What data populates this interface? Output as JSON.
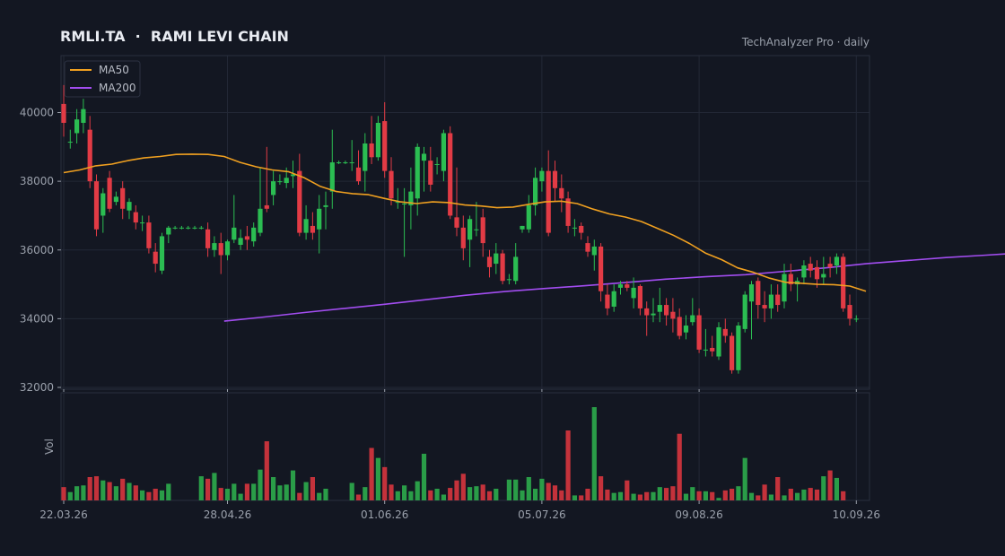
{
  "header": {
    "title": "RMLI.TA  ·  RAMI LEVI CHAIN",
    "subtitle": "TechAnalyzer Pro · daily"
  },
  "colors": {
    "up": "#2bbd52",
    "down": "#e23b45",
    "ma50": "#f0a020",
    "ma200": "#a24df0",
    "grid": "#232836",
    "background": "#131722"
  },
  "chart_data": {
    "type": "candlestick",
    "title": "RMLI.TA  ·  RAMI LEVI CHAIN",
    "ylim": [
      32000,
      41500
    ],
    "yticks": [
      32000,
      34000,
      36000,
      38000,
      40000
    ],
    "xticks": [
      {
        "index": 0,
        "label": "22.03.26"
      },
      {
        "index": 25,
        "label": "28.04.26"
      },
      {
        "index": 49,
        "label": "01.06.26"
      },
      {
        "index": 73,
        "label": "05.07.26"
      },
      {
        "index": 97,
        "label": "09.08.26"
      },
      {
        "index": 121,
        "label": "10.09.26"
      }
    ],
    "volume_label": "Vol",
    "legend": [
      {
        "name": "MA50",
        "color": "#f0a020"
      },
      {
        "name": "MA200",
        "color": "#a24df0"
      }
    ],
    "ohlc": [
      [
        40250,
        39700,
        40800,
        39300
      ],
      [
        39150,
        39150,
        39500,
        38950
      ],
      [
        39400,
        39800,
        40100,
        39100
      ],
      [
        39700,
        40100,
        40400,
        39400
      ],
      [
        39500,
        38000,
        39900,
        37800
      ],
      [
        38000,
        36600,
        38200,
        36400
      ],
      [
        37000,
        37650,
        37800,
        36500
      ],
      [
        38100,
        37200,
        38300,
        37100
      ],
      [
        37400,
        37550,
        37700,
        37300
      ],
      [
        37800,
        37200,
        38000,
        36900
      ],
      [
        37150,
        37400,
        37500,
        36900
      ],
      [
        37100,
        36800,
        37300,
        36600
      ],
      [
        36800,
        36800,
        37000,
        36550
      ],
      [
        36800,
        36050,
        37000,
        35900
      ],
      [
        35950,
        35600,
        36200,
        35350
      ],
      [
        35400,
        36400,
        36500,
        35300
      ],
      [
        36450,
        36650,
        36700,
        36200
      ],
      [
        36650,
        36650,
        36700,
        36600
      ],
      [
        36650,
        36650,
        36700,
        36600
      ],
      [
        36650,
        36650,
        36700,
        36600
      ],
      [
        36650,
        36650,
        36700,
        36600
      ],
      [
        36650,
        36650,
        36700,
        36600
      ],
      [
        36600,
        36050,
        36800,
        35800
      ],
      [
        36000,
        36200,
        36400,
        35800
      ],
      [
        36200,
        35850,
        36500,
        35300
      ],
      [
        35850,
        36250,
        36300,
        35700
      ],
      [
        36300,
        36650,
        37600,
        36200
      ],
      [
        36150,
        36350,
        36600,
        36000
      ],
      [
        36400,
        36300,
        36700,
        36000
      ],
      [
        36250,
        36650,
        36800,
        36100
      ],
      [
        36500,
        37200,
        38400,
        36400
      ],
      [
        37300,
        37200,
        39000,
        37100
      ],
      [
        37600,
        38000,
        38300,
        37300
      ],
      [
        38000,
        38000,
        38200,
        37900
      ],
      [
        37950,
        38100,
        38400,
        37800
      ],
      [
        38150,
        38200,
        38600,
        37800
      ],
      [
        38300,
        36500,
        38800,
        36400
      ],
      [
        36500,
        36900,
        37300,
        36300
      ],
      [
        36700,
        36500,
        37100,
        36300
      ],
      [
        36600,
        37200,
        37600,
        35900
      ],
      [
        37250,
        37300,
        37700,
        36600
      ],
      [
        37700,
        38550,
        39500,
        37200
      ],
      [
        38550,
        38550,
        38600,
        38500
      ],
      [
        38550,
        38550,
        38600,
        38500
      ],
      [
        38550,
        38550,
        39200,
        38300
      ],
      [
        38400,
        38000,
        38900,
        37900
      ],
      [
        38300,
        39100,
        39400,
        37700
      ],
      [
        39100,
        38700,
        39900,
        38500
      ],
      [
        38700,
        39700,
        39900,
        38600
      ],
      [
        39750,
        38300,
        40300,
        38100
      ],
      [
        38300,
        37500,
        38700,
        37300
      ],
      [
        37400,
        37400,
        37800,
        37200
      ],
      [
        37350,
        37350,
        37800,
        35800
      ],
      [
        37300,
        37700,
        38400,
        36600
      ],
      [
        37500,
        39000,
        39100,
        37000
      ],
      [
        38600,
        38800,
        39000,
        37700
      ],
      [
        38600,
        37900,
        39000,
        37700
      ],
      [
        38500,
        38500,
        38700,
        38200
      ],
      [
        38300,
        39400,
        39500,
        38000
      ],
      [
        39400,
        37000,
        39600,
        36900
      ],
      [
        36950,
        36650,
        38400,
        36400
      ],
      [
        36650,
        36050,
        37000,
        35700
      ],
      [
        36300,
        36900,
        37000,
        35500
      ],
      [
        36600,
        36600,
        37400,
        36400
      ],
      [
        36950,
        36200,
        37200,
        35800
      ],
      [
        35800,
        35500,
        36000,
        35200
      ],
      [
        35600,
        35900,
        36200,
        35300
      ],
      [
        35900,
        35100,
        36000,
        35000
      ],
      [
        35150,
        35150,
        35300,
        35000
      ],
      [
        35100,
        35800,
        36200,
        35000
      ],
      [
        36600,
        36700,
        36700,
        36500
      ],
      [
        36600,
        37300,
        37600,
        36500
      ],
      [
        37300,
        38100,
        38400,
        37000
      ],
      [
        38000,
        38300,
        38400,
        37700
      ],
      [
        38300,
        36500,
        38900,
        36400
      ],
      [
        38300,
        37800,
        38600,
        37400
      ],
      [
        37800,
        37500,
        38200,
        37100
      ],
      [
        37500,
        36700,
        37700,
        36500
      ],
      [
        36650,
        36650,
        36900,
        36400
      ],
      [
        36700,
        36500,
        36800,
        36300
      ],
      [
        36200,
        35950,
        36400,
        35800
      ],
      [
        35850,
        36100,
        36300,
        35400
      ],
      [
        36100,
        34800,
        36200,
        34500
      ],
      [
        34700,
        34300,
        35000,
        34100
      ],
      [
        34350,
        34800,
        35000,
        34200
      ],
      [
        34900,
        35000,
        35100,
        34700
      ],
      [
        35000,
        34900,
        35100,
        34800
      ],
      [
        34600,
        34900,
        35200,
        34300
      ],
      [
        34950,
        34300,
        35000,
        34100
      ],
      [
        34300,
        34100,
        34500,
        33500
      ],
      [
        34100,
        34150,
        34600,
        33900
      ],
      [
        34200,
        34400,
        34900,
        33900
      ],
      [
        34400,
        34100,
        34600,
        33800
      ],
      [
        34200,
        34000,
        34600,
        33600
      ],
      [
        34050,
        33500,
        34300,
        33400
      ],
      [
        33600,
        33800,
        34100,
        33400
      ],
      [
        33900,
        34100,
        34600,
        33800
      ],
      [
        34100,
        33100,
        34300,
        33000
      ],
      [
        33100,
        33100,
        33700,
        32900
      ],
      [
        33150,
        33050,
        33500,
        32900
      ],
      [
        32900,
        33750,
        33900,
        32800
      ],
      [
        33700,
        33500,
        34000,
        33300
      ],
      [
        33500,
        32500,
        33600,
        32400
      ],
      [
        32500,
        33800,
        33900,
        32400
      ],
      [
        33700,
        34700,
        34800,
        33600
      ],
      [
        34500,
        35000,
        35100,
        33400
      ],
      [
        35100,
        34400,
        35200,
        34000
      ],
      [
        34400,
        34300,
        34800,
        33900
      ],
      [
        34300,
        34700,
        35000,
        34000
      ],
      [
        34700,
        34400,
        35000,
        34200
      ],
      [
        34500,
        35300,
        35600,
        34300
      ],
      [
        35300,
        35000,
        35600,
        34800
      ],
      [
        35000,
        35100,
        35200,
        34500
      ],
      [
        35200,
        35550,
        35700,
        35000
      ],
      [
        35600,
        35400,
        35800,
        35200
      ],
      [
        35500,
        35150,
        35700,
        34900
      ],
      [
        35200,
        35300,
        35800,
        35000
      ],
      [
        35600,
        35500,
        35800,
        35200
      ],
      [
        35550,
        35800,
        35900,
        35300
      ],
      [
        35800,
        34300,
        35900,
        34200
      ],
      [
        34400,
        34000,
        34700,
        33800
      ],
      [
        34000,
        34000,
        34100,
        33900
      ]
    ],
    "volume": [
      16,
      10,
      17,
      18,
      28,
      29,
      24,
      22,
      17,
      26,
      21,
      18,
      12,
      10,
      14,
      12,
      20,
      null,
      null,
      null,
      null,
      29,
      26,
      33,
      15,
      14,
      20,
      8,
      20,
      20,
      37,
      71,
      28,
      18,
      19,
      36,
      9,
      22,
      28,
      9,
      14,
      null,
      null,
      null,
      21,
      7,
      16,
      63,
      51,
      40,
      19,
      11,
      18,
      11,
      23,
      56,
      12,
      14,
      7,
      15,
      24,
      32,
      16,
      17,
      19,
      11,
      14,
      null,
      25,
      25,
      12,
      28,
      14,
      26,
      21,
      18,
      12,
      84,
      6,
      6,
      14,
      112,
      29,
      13,
      9,
      10,
      24,
      8,
      7,
      10,
      10,
      16,
      15,
      17,
      80,
      8,
      16,
      11,
      11,
      10,
      3,
      12,
      14,
      17,
      51,
      9,
      6,
      19,
      7,
      28,
      6,
      14,
      9,
      13,
      15,
      13,
      29,
      36,
      27,
      11
    ],
    "ma50": [
      [
        0,
        38250
      ],
      [
        4,
        38330
      ],
      [
        8,
        38450
      ],
      [
        12,
        38500
      ],
      [
        16,
        38600
      ],
      [
        20,
        38680
      ],
      [
        24,
        38720
      ],
      [
        28,
        38780
      ],
      [
        32,
        38790
      ],
      [
        36,
        38780
      ],
      [
        40,
        38720
      ],
      [
        44,
        38550
      ],
      [
        48,
        38420
      ],
      [
        52,
        38330
      ],
      [
        56,
        38280
      ],
      [
        60,
        38100
      ],
      [
        64,
        37850
      ],
      [
        68,
        37700
      ],
      [
        72,
        37640
      ],
      [
        76,
        37610
      ],
      [
        80,
        37500
      ],
      [
        84,
        37400
      ],
      [
        88,
        37350
      ],
      [
        92,
        37400
      ],
      [
        96,
        37380
      ],
      [
        100,
        37310
      ],
      [
        104,
        37280
      ],
      [
        108,
        37230
      ],
      [
        112,
        37250
      ],
      [
        116,
        37330
      ],
      [
        120,
        37400
      ],
      [
        124,
        37420
      ],
      [
        128,
        37350
      ],
      [
        132,
        37190
      ],
      [
        136,
        37050
      ],
      [
        140,
        36960
      ],
      [
        144,
        36830
      ],
      [
        148,
        36630
      ],
      [
        152,
        36430
      ],
      [
        156,
        36190
      ],
      [
        160,
        35910
      ],
      [
        164,
        35720
      ],
      [
        168,
        35480
      ],
      [
        172,
        35350
      ],
      [
        176,
        35180
      ],
      [
        180,
        35060
      ],
      [
        184,
        35030
      ],
      [
        188,
        35000
      ],
      [
        192,
        34990
      ],
      [
        196,
        34950
      ],
      [
        200,
        34800
      ]
    ],
    "ma200": [
      [
        40,
        33930
      ],
      [
        50,
        34050
      ],
      [
        60,
        34180
      ],
      [
        70,
        34300
      ],
      [
        80,
        34420
      ],
      [
        90,
        34550
      ],
      [
        100,
        34680
      ],
      [
        110,
        34790
      ],
      [
        120,
        34880
      ],
      [
        130,
        34960
      ],
      [
        140,
        35050
      ],
      [
        150,
        35150
      ],
      [
        160,
        35220
      ],
      [
        170,
        35280
      ],
      [
        180,
        35380
      ],
      [
        190,
        35480
      ],
      [
        200,
        35600
      ],
      [
        210,
        35690
      ],
      [
        220,
        35780
      ],
      [
        230,
        35850
      ],
      [
        240,
        35920
      ],
      [
        250,
        36000
      ],
      [
        260,
        36080
      ],
      [
        270,
        36130
      ],
      [
        280,
        36160
      ],
      [
        290,
        36230
      ],
      [
        300,
        36300
      ],
      [
        310,
        36370
      ],
      [
        320,
        36450
      ],
      [
        330,
        36510
      ],
      [
        340,
        36530
      ]
    ]
  }
}
